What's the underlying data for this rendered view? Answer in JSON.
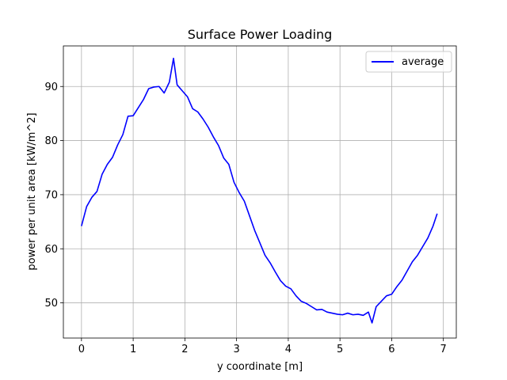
{
  "chart_data": {
    "type": "line",
    "title": "Surface Power Loading",
    "xlabel": "y coordinate [m]",
    "ylabel": "power per unit area [kW/m^2]",
    "xlim": [
      -0.35,
      7.25
    ],
    "ylim": [
      43.5,
      97.5
    ],
    "xticks": [
      0,
      1,
      2,
      3,
      4,
      5,
      6,
      7
    ],
    "yticks": [
      50,
      60,
      70,
      80,
      90
    ],
    "grid": true,
    "legend_position": "top-right",
    "series": [
      {
        "name": "average",
        "color": "#0000ff",
        "x": [
          0.0,
          0.1,
          0.2,
          0.3,
          0.4,
          0.5,
          0.6,
          0.7,
          0.8,
          0.9,
          1.0,
          1.1,
          1.2,
          1.3,
          1.4,
          1.5,
          1.6,
          1.7,
          1.78,
          1.85,
          1.95,
          2.05,
          2.15,
          2.25,
          2.35,
          2.45,
          2.55,
          2.65,
          2.75,
          2.85,
          2.95,
          3.05,
          3.15,
          3.25,
          3.35,
          3.45,
          3.55,
          3.65,
          3.75,
          3.85,
          3.95,
          4.05,
          4.15,
          4.25,
          4.35,
          4.45,
          4.55,
          4.65,
          4.75,
          4.85,
          4.95,
          5.05,
          5.15,
          5.25,
          5.35,
          5.45,
          5.55,
          5.62,
          5.7,
          5.8,
          5.9,
          6.0,
          6.1,
          6.2,
          6.3,
          6.4,
          6.5,
          6.6,
          6.7,
          6.8,
          6.88
        ],
        "y": [
          64.2,
          67.8,
          69.5,
          70.6,
          73.8,
          75.6,
          76.9,
          79.2,
          81.1,
          84.5,
          84.6,
          86.1,
          87.6,
          89.6,
          89.9,
          90.0,
          88.8,
          90.8,
          95.2,
          90.3,
          89.2,
          88.1,
          85.9,
          85.3,
          84.0,
          82.5,
          80.7,
          79.1,
          76.8,
          75.6,
          72.3,
          70.4,
          68.8,
          66.1,
          63.4,
          61.1,
          58.8,
          57.4,
          55.7,
          54.1,
          53.1,
          52.6,
          51.3,
          50.3,
          49.9,
          49.3,
          48.7,
          48.8,
          48.3,
          48.1,
          47.9,
          47.8,
          48.1,
          47.8,
          47.9,
          47.7,
          48.3,
          46.3,
          49.3,
          50.3,
          51.3,
          51.6,
          53.0,
          54.2,
          55.9,
          57.6,
          58.8,
          60.4,
          62.0,
          64.2,
          66.5
        ]
      }
    ]
  }
}
